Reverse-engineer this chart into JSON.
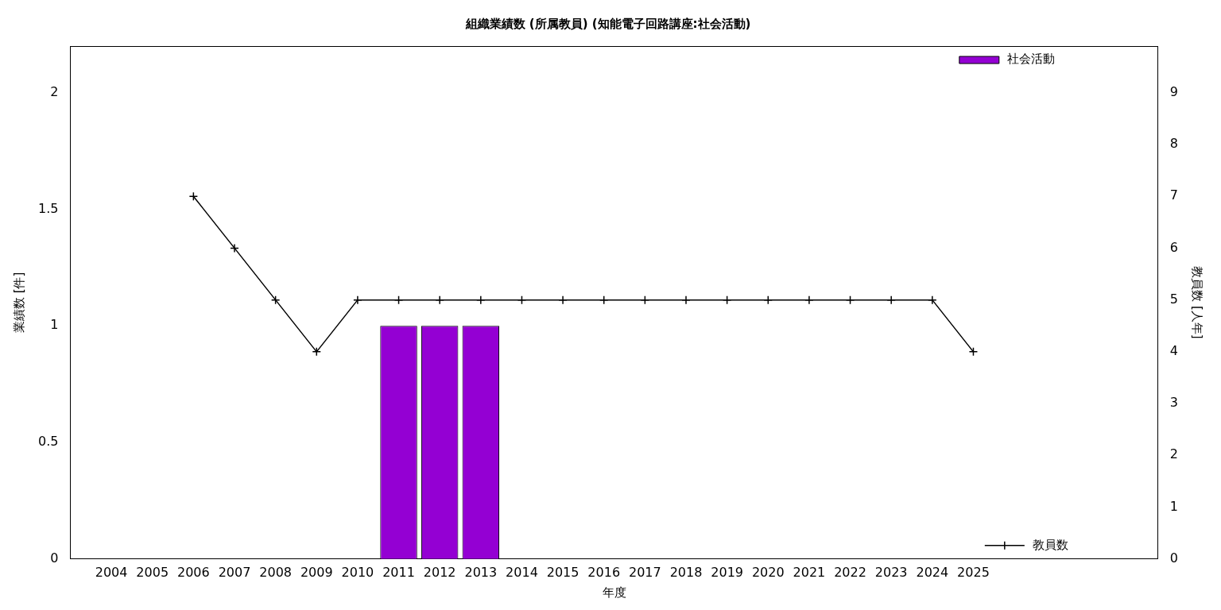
{
  "chart_data": {
    "type": "bar",
    "title": "組織業績数 (所属教員) (知能電子回路講座:社会活動)",
    "xlabel": "年度",
    "ylabel": "業績数 [件]",
    "y2label": "教員数 [人年]",
    "xlim": [
      2003,
      2029.5
    ],
    "xticks": [
      2004,
      2005,
      2006,
      2007,
      2008,
      2009,
      2010,
      2011,
      2012,
      2013,
      2014,
      2015,
      2016,
      2017,
      2018,
      2019,
      2020,
      2021,
      2022,
      2023,
      2024,
      2025
    ],
    "ylim": [
      0,
      2.2
    ],
    "yticks": [
      0,
      0.5,
      1,
      1.5,
      2
    ],
    "y2lim": [
      0,
      9.9
    ],
    "y2ticks": [
      0,
      1,
      2,
      3,
      4,
      5,
      6,
      7,
      8,
      9
    ],
    "series": [
      {
        "name": "社会活動",
        "color": "#9400d3",
        "x": [
          2011,
          2012,
          2013
        ],
        "values": [
          1,
          1,
          1
        ]
      },
      {
        "name": "教員数",
        "type": "line",
        "axis": "y2",
        "color": "#000000",
        "marker": "cross",
        "x": [
          2006,
          2007,
          2008,
          2009,
          2010,
          2011,
          2012,
          2013,
          2014,
          2015,
          2016,
          2017,
          2018,
          2019,
          2020,
          2021,
          2022,
          2023,
          2024,
          2025
        ],
        "values": [
          7,
          6,
          5,
          4,
          5,
          5,
          5,
          5,
          5,
          5,
          5,
          5,
          5,
          5,
          5,
          5,
          5,
          5,
          5,
          4
        ]
      }
    ],
    "grid": false,
    "legend": "top right"
  }
}
